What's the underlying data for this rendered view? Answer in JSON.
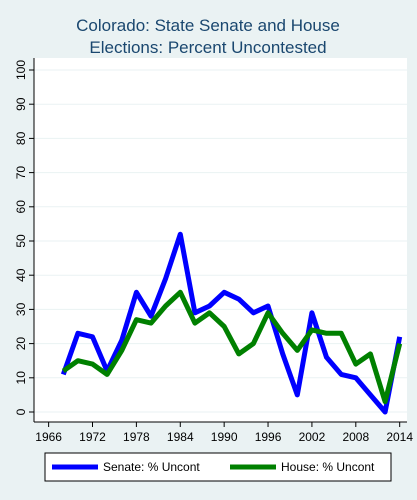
{
  "chart_data": {
    "type": "line",
    "title_lines": [
      "Colorado: State Senate and House",
      "Elections: Percent Uncontested"
    ],
    "xlabel": "",
    "ylabel": "",
    "xlim": [
      1964,
      2015
    ],
    "ylim": [
      0,
      100
    ],
    "x_ticks": [
      1966,
      1972,
      1978,
      1984,
      1990,
      1996,
      2002,
      2008,
      2014
    ],
    "y_ticks": [
      0,
      10,
      20,
      30,
      40,
      50,
      60,
      70,
      80,
      90,
      100
    ],
    "grid": true,
    "legend_position": "bottom",
    "series": [
      {
        "name": "Senate: % Uncont",
        "color": "#0000ff",
        "x": [
          1968,
          1970,
          1972,
          1974,
          1976,
          1978,
          1980,
          1982,
          1984,
          1986,
          1988,
          1990,
          1992,
          1994,
          1996,
          1998,
          2000,
          2002,
          2004,
          2006,
          2008,
          2010,
          2012,
          2014
        ],
        "y": [
          11,
          23,
          22,
          12,
          21,
          35,
          28,
          39,
          52,
          29,
          31,
          35,
          33,
          29,
          31,
          17,
          5,
          29,
          16,
          11,
          10,
          5,
          0,
          22
        ]
      },
      {
        "name": "House: % Uncont",
        "color": "#008000",
        "x": [
          1968,
          1970,
          1972,
          1974,
          1976,
          1978,
          1980,
          1982,
          1984,
          1986,
          1988,
          1990,
          1992,
          1994,
          1996,
          1998,
          2000,
          2002,
          2004,
          2006,
          2008,
          2010,
          2012,
          2014
        ],
        "y": [
          12,
          15,
          14,
          11,
          18,
          27,
          26,
          31,
          35,
          26,
          29,
          25,
          17,
          20,
          29,
          23,
          18,
          24,
          23,
          23,
          14,
          17,
          3,
          20
        ]
      }
    ]
  }
}
